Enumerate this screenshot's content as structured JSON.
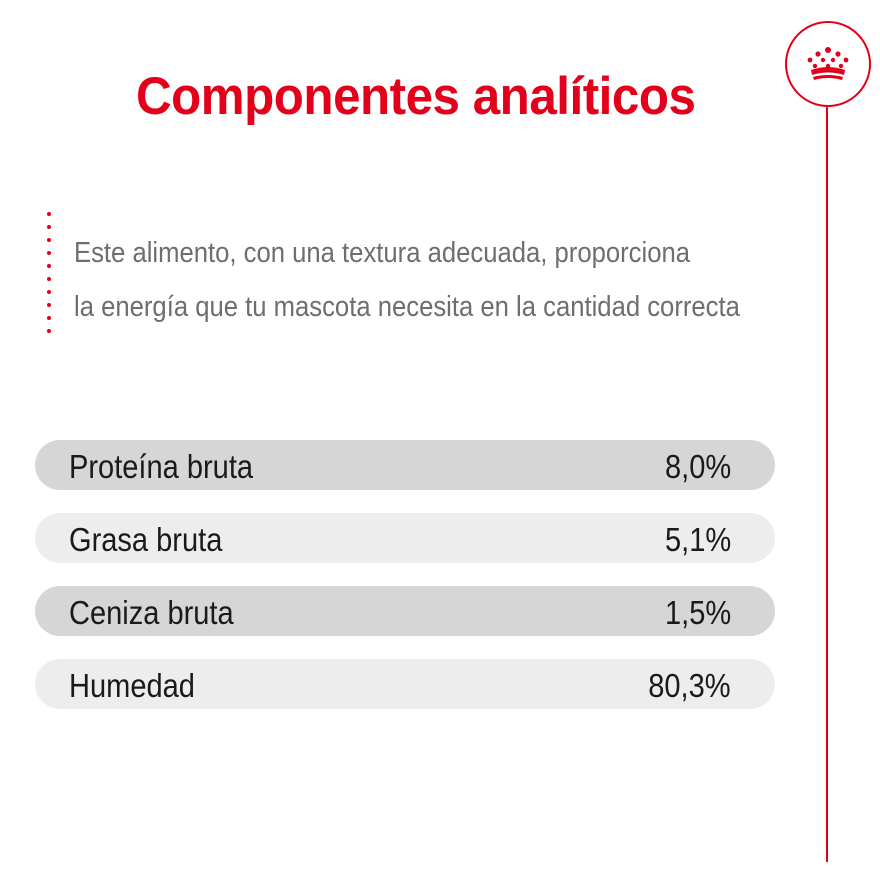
{
  "title": "Componentes analíticos",
  "description": {
    "line1": "Este alimento, con una textura adecuada, proporciona",
    "line2": "la energía que tu mascota necesita en la cantidad correcta"
  },
  "badge_icon": "crown-icon",
  "colors": {
    "brand_red": "#e2001a",
    "row_dark": "#d6d6d6",
    "row_light": "#ededed",
    "body_text": "#1a1a1a",
    "description_text": "#6e6e6e"
  },
  "nutrients": [
    {
      "label": "Proteína bruta",
      "value": "8,0%"
    },
    {
      "label": "Grasa bruta",
      "value": "5,1%"
    },
    {
      "label": "Ceniza bruta",
      "value": "1,5%"
    },
    {
      "label": "Humedad",
      "value": "80,3%"
    }
  ]
}
